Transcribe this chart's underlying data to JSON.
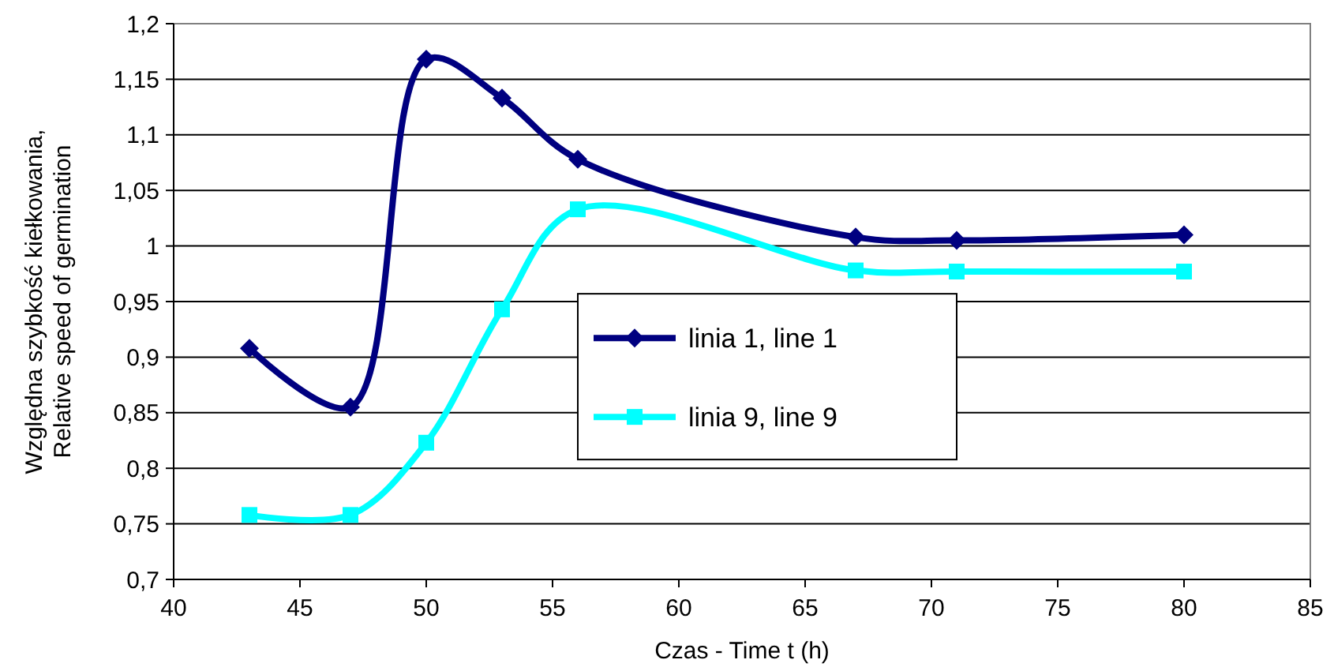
{
  "chart_data": {
    "type": "line",
    "xlabel": "Czas - Time  t (h)",
    "ylabel": "Względna szybkość kiełkowania, Relative speed of germination",
    "xlim": [
      40,
      85
    ],
    "xticks": [
      40,
      45,
      50,
      55,
      60,
      65,
      70,
      75,
      80,
      85
    ],
    "ylim": [
      0.7,
      1.2
    ],
    "yticks": [
      {
        "value": 0.7,
        "label": "0,7"
      },
      {
        "value": 0.75,
        "label": "0,75"
      },
      {
        "value": 0.8,
        "label": "0,8"
      },
      {
        "value": 0.85,
        "label": "0,85"
      },
      {
        "value": 0.9,
        "label": "0,9"
      },
      {
        "value": 0.95,
        "label": "0,95"
      },
      {
        "value": 1,
        "label": "1"
      },
      {
        "value": 1.05,
        "label": "1,05"
      },
      {
        "value": 1.1,
        "label": "1,1"
      },
      {
        "value": 1.15,
        "label": "1,15"
      },
      {
        "value": 1.2,
        "label": "1,2"
      }
    ],
    "grid": "y",
    "legend": "right",
    "x": [
      43,
      47,
      50,
      53,
      56,
      67,
      71,
      80
    ],
    "series": [
      {
        "name": "linia 1, line 1",
        "color": "#000080",
        "marker": "diamond",
        "values": [
          0.908,
          0.855,
          1.168,
          1.133,
          1.078,
          1.008,
          1.005,
          1.01
        ]
      },
      {
        "name": "linia 9, line 9",
        "color": "#00ffff",
        "marker": "square",
        "values": [
          0.758,
          0.758,
          0.823,
          0.943,
          1.033,
          0.978,
          0.977,
          0.977
        ]
      }
    ]
  }
}
